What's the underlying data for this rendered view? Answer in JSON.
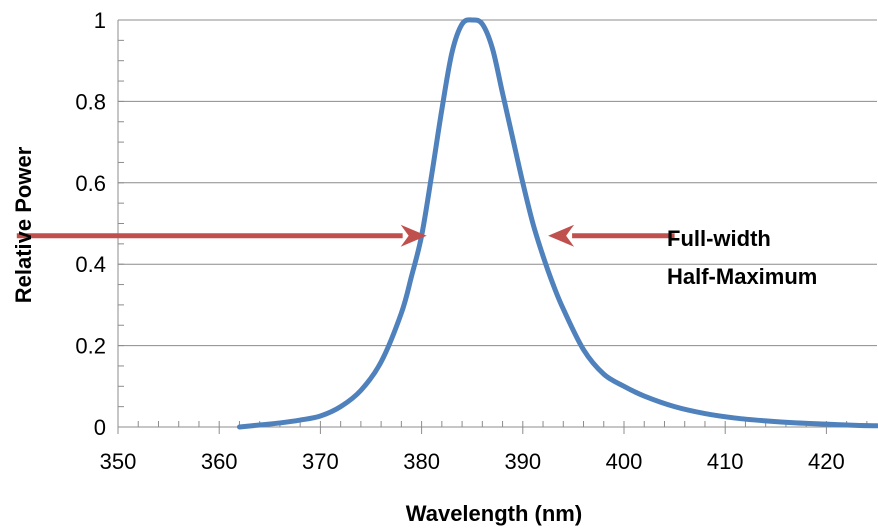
{
  "chart_data": {
    "type": "line",
    "title": "",
    "xlabel": "Wavelength (nm)",
    "ylabel": "Relative Power",
    "xlim": [
      350,
      425
    ],
    "ylim": [
      0,
      1
    ],
    "x_ticks": [
      "350",
      "360",
      "370",
      "380",
      "390",
      "400",
      "410",
      "420"
    ],
    "y_ticks": [
      "0",
      "0.2",
      "0.4",
      "0.6",
      "0.8",
      "1"
    ],
    "grid": "horizontal",
    "series": [
      {
        "color": "#4f81bd",
        "x": [
          362,
          364,
          366,
          368,
          370,
          372,
          374,
          376,
          378,
          379,
          380,
          381,
          382,
          383,
          384,
          385,
          386,
          387,
          388,
          389,
          390,
          391,
          392,
          393,
          394,
          396,
          398,
          400,
          402,
          405,
          408,
          411,
          414,
          417,
          420,
          423,
          425
        ],
        "y": [
          0.0,
          0.005,
          0.01,
          0.017,
          0.027,
          0.05,
          0.09,
          0.16,
          0.28,
          0.37,
          0.47,
          0.62,
          0.78,
          0.92,
          0.99,
          1.0,
          0.99,
          0.93,
          0.82,
          0.71,
          0.6,
          0.5,
          0.42,
          0.35,
          0.29,
          0.19,
          0.13,
          0.1,
          0.076,
          0.05,
          0.033,
          0.022,
          0.015,
          0.01,
          0.007,
          0.004,
          0.003
        ]
      }
    ],
    "annotation": {
      "label_line1": "Full-width",
      "label_line2": "Half-Maximum",
      "y": 0.47,
      "left_arrow_x": [
        340,
        380.5
      ],
      "right_arrow_x": [
        405,
        392.5
      ],
      "arrow_color": "#c0504d"
    }
  }
}
